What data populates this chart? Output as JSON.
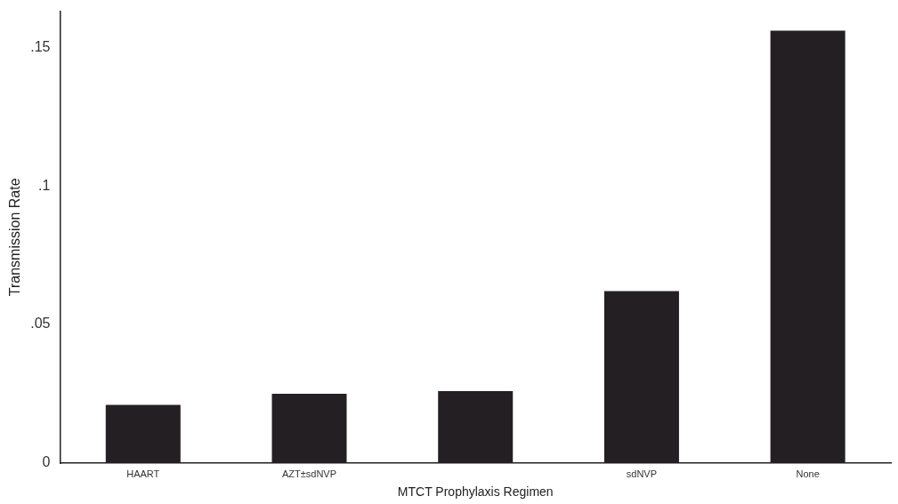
{
  "chart_data": {
    "type": "bar",
    "xlabel": "MTCT Prophylaxis Regimen",
    "ylabel": "Transmission Rate",
    "categories": [
      "HAART",
      "AZT±sdNVP",
      null,
      "sdNVP",
      "None"
    ],
    "values": [
      0.021,
      0.025,
      0.026,
      0.062,
      0.156
    ],
    "color": "#231f22",
    "ylim": [
      0,
      0.163
    ],
    "yticks": [
      {
        "value": 0,
        "label": "0"
      },
      {
        "value": 0.05,
        "label": ".05"
      },
      {
        "value": 0.1,
        "label": ".1"
      },
      {
        "value": 0.15,
        "label": ".15"
      }
    ],
    "grid": false,
    "legend": false
  }
}
